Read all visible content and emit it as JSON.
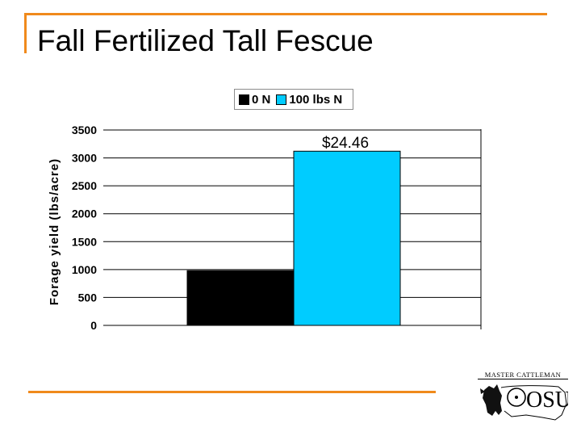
{
  "slide": {
    "title": "Fall Fertilized Tall Fescue",
    "logo_text": "MASTER CATTLEMAN",
    "logo_mark": "OSU"
  },
  "colors": {
    "accent": "#f08a1c",
    "series_0n": "#000000",
    "series_100n": "#00ccff"
  },
  "chart_data": {
    "type": "bar",
    "title": "",
    "xlabel": "",
    "ylabel": "Forage yield (lbs/acre)",
    "ylim": [
      0,
      3500
    ],
    "yticks": [
      "0",
      "500",
      "1000",
      "1500",
      "2000",
      "2500",
      "3000",
      "3500"
    ],
    "categories": [
      ""
    ],
    "grid": true,
    "legend_position": "top",
    "series": [
      {
        "name": "0 N",
        "values": [
          980
        ],
        "color": "#000000"
      },
      {
        "name": "100 lbs N",
        "values": [
          3120
        ],
        "color": "#00ccff"
      }
    ],
    "annotations": [
      {
        "text": "$24.46",
        "series": "100 lbs N"
      }
    ]
  }
}
